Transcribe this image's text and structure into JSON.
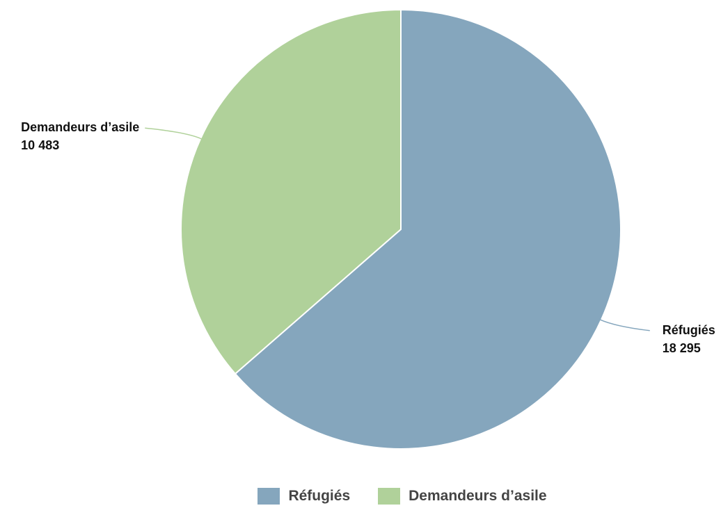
{
  "chart_data": {
    "type": "pie",
    "title": "",
    "slices": [
      {
        "label": "Réfugiés",
        "value": 18295,
        "value_text": "18 295",
        "color": "#85a6bd"
      },
      {
        "label": "Demandeurs d’asile",
        "value": 10483,
        "value_text": "10 483",
        "color": "#b0d19a"
      }
    ],
    "legend": {
      "placement": "bottom",
      "items": [
        {
          "label": "Réfugiés",
          "color": "#85a6bd"
        },
        {
          "label": "Demandeurs d’asile",
          "color": "#b0d19a"
        }
      ]
    }
  }
}
